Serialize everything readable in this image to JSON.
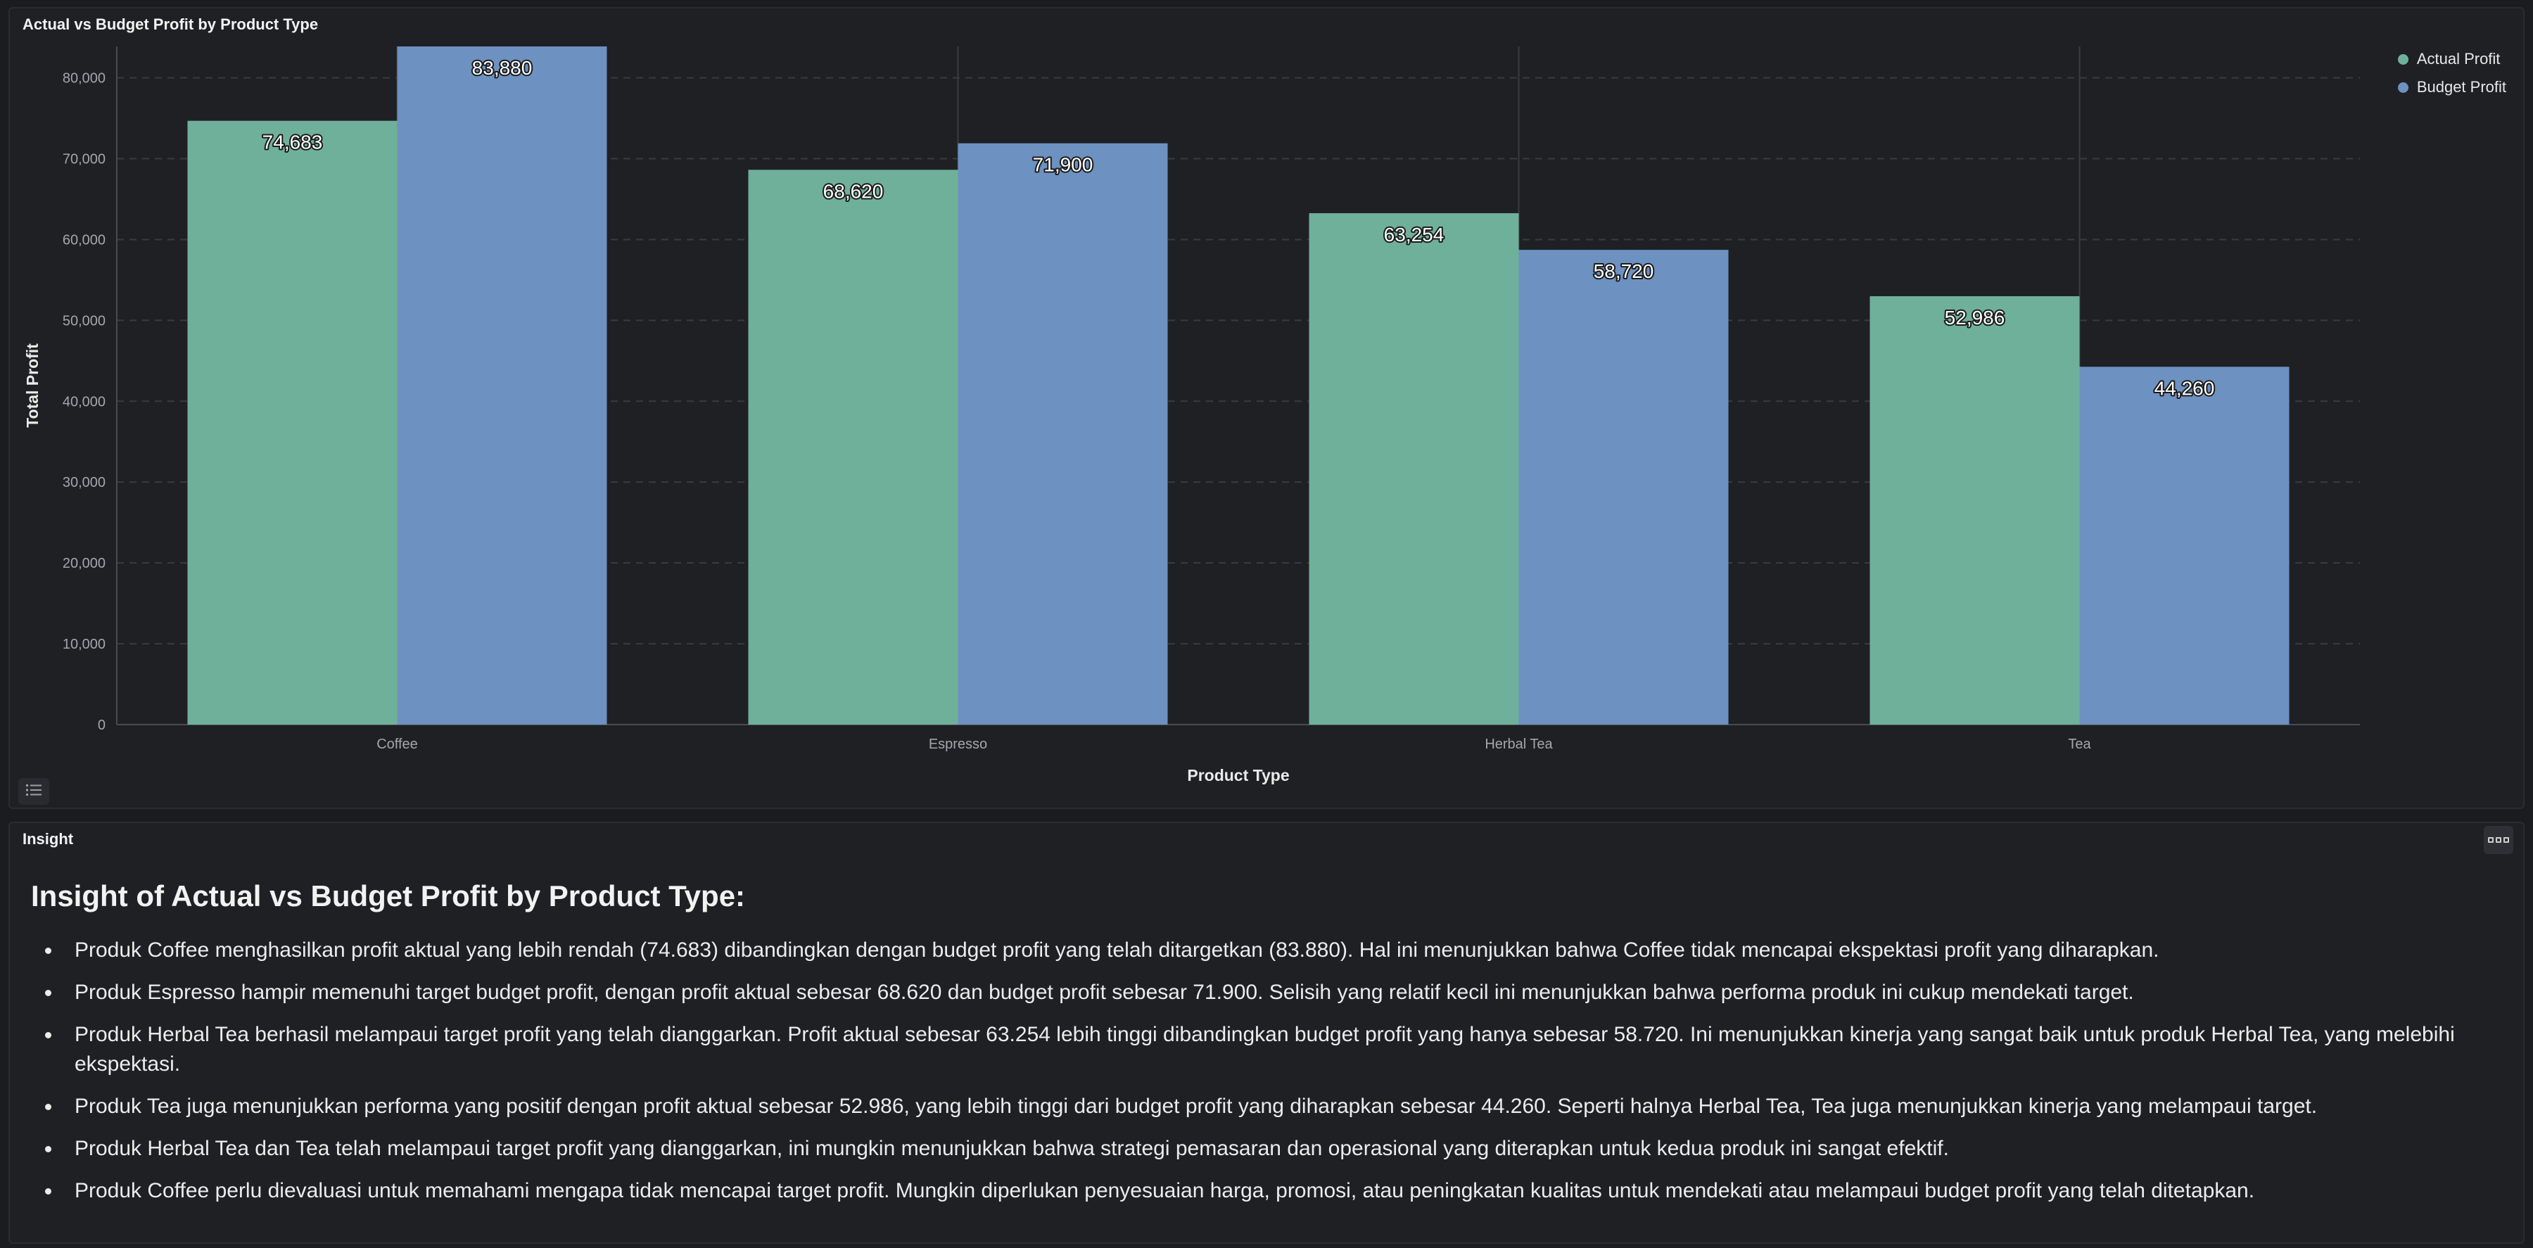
{
  "chart_panel": {
    "title": "Actual vs Budget Profit by Product Type"
  },
  "chart_data": {
    "type": "bar",
    "title": "Actual vs Budget Profit by Product Type",
    "xlabel": "Product Type",
    "ylabel": "Total Profit",
    "categories": [
      "Coffee",
      "Espresso",
      "Herbal Tea",
      "Tea"
    ],
    "series": [
      {
        "name": "Actual Profit",
        "values": [
          74683,
          68620,
          63254,
          52986
        ],
        "labels": [
          "74,683",
          "68,620",
          "63,254",
          "52,986"
        ],
        "color": "#6fb09b"
      },
      {
        "name": "Budget Profit",
        "values": [
          83880,
          71900,
          58720,
          44260
        ],
        "labels": [
          "83,880",
          "71,900",
          "58,720",
          "44,260"
        ],
        "color": "#6d91c0"
      }
    ],
    "ylim": [
      0,
      83880
    ],
    "yticks": [
      0,
      10000,
      20000,
      30000,
      40000,
      50000,
      60000,
      70000,
      80000
    ],
    "ytick_labels": [
      "0",
      "10,000",
      "20,000",
      "30,000",
      "40,000",
      "50,000",
      "60,000",
      "70,000",
      "80,000"
    ],
    "grid": true,
    "legend_position": "top-right"
  },
  "icons": {
    "list": "list-icon",
    "more": "more-icon"
  },
  "insight_panel": {
    "title": "Insight",
    "heading": "Insight of Actual vs Budget Profit by Product Type:",
    "items": [
      "Produk Coffee menghasilkan profit aktual yang lebih rendah (74.683) dibandingkan dengan budget profit yang telah ditargetkan (83.880). Hal ini menunjukkan bahwa Coffee tidak mencapai ekspektasi profit yang diharapkan.",
      "Produk Espresso hampir memenuhi target budget profit, dengan profit aktual sebesar 68.620 dan budget profit sebesar 71.900. Selisih yang relatif kecil ini menunjukkan bahwa performa produk ini cukup mendekati target.",
      "Produk Herbal Tea berhasil melampaui target profit yang telah dianggarkan. Profit aktual sebesar 63.254 lebih tinggi dibandingkan budget profit yang hanya sebesar 58.720. Ini menunjukkan kinerja yang sangat baik untuk produk Herbal Tea, yang melebihi ekspektasi.",
      "Produk Tea juga menunjukkan performa yang positif dengan profit aktual sebesar 52.986, yang lebih tinggi dari budget profit yang diharapkan sebesar 44.260. Seperti halnya Herbal Tea, Tea juga menunjukkan kinerja yang melampaui target.",
      "Produk Herbal Tea dan Tea telah melampaui target profit yang dianggarkan, ini mungkin menunjukkan bahwa strategi pemasaran dan operasional yang diterapkan untuk kedua produk ini sangat efektif.",
      "Produk Coffee perlu dievaluasi untuk memahami mengapa tidak mencapai target profit. Mungkin diperlukan penyesuaian harga, promosi, atau peningkatan kualitas untuk mendekati atau melampaui budget profit yang telah ditetapkan."
    ]
  }
}
